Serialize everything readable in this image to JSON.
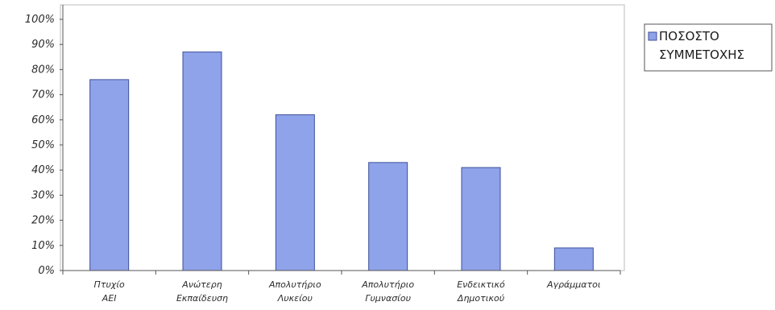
{
  "chart_data": {
    "type": "bar",
    "categories": [
      [
        "Πτυχίο",
        "ΑΕΙ"
      ],
      [
        "Ανώτερη",
        "Εκπαίδευση"
      ],
      [
        "Απολυτήριο",
        "Λυκείου"
      ],
      [
        "Απολυτήριο",
        "Γυμνασίου"
      ],
      [
        "Ενδεικτικό",
        "Δημοτικού"
      ],
      [
        "Αγράμματοι"
      ]
    ],
    "series": [
      {
        "name": [
          "ΠΟΣΟΣΤΟ",
          "ΣΥΜΜΕΤΟΧΗΣ"
        ],
        "values": [
          76,
          87,
          62,
          43,
          41,
          9
        ],
        "color": "#8fa3ea"
      }
    ],
    "ylim": [
      0,
      100
    ],
    "yticks": [
      "0%",
      "10%",
      "20%",
      "30%",
      "40%",
      "50%",
      "60%",
      "70%",
      "80%",
      "90%",
      "100%"
    ],
    "grid": false,
    "legend_position": "right",
    "colors": {
      "bar_fill": "#8fa3ea",
      "bar_stroke": "#3d4f9a",
      "axis": "#555555",
      "border": "#9a9a9a"
    }
  }
}
